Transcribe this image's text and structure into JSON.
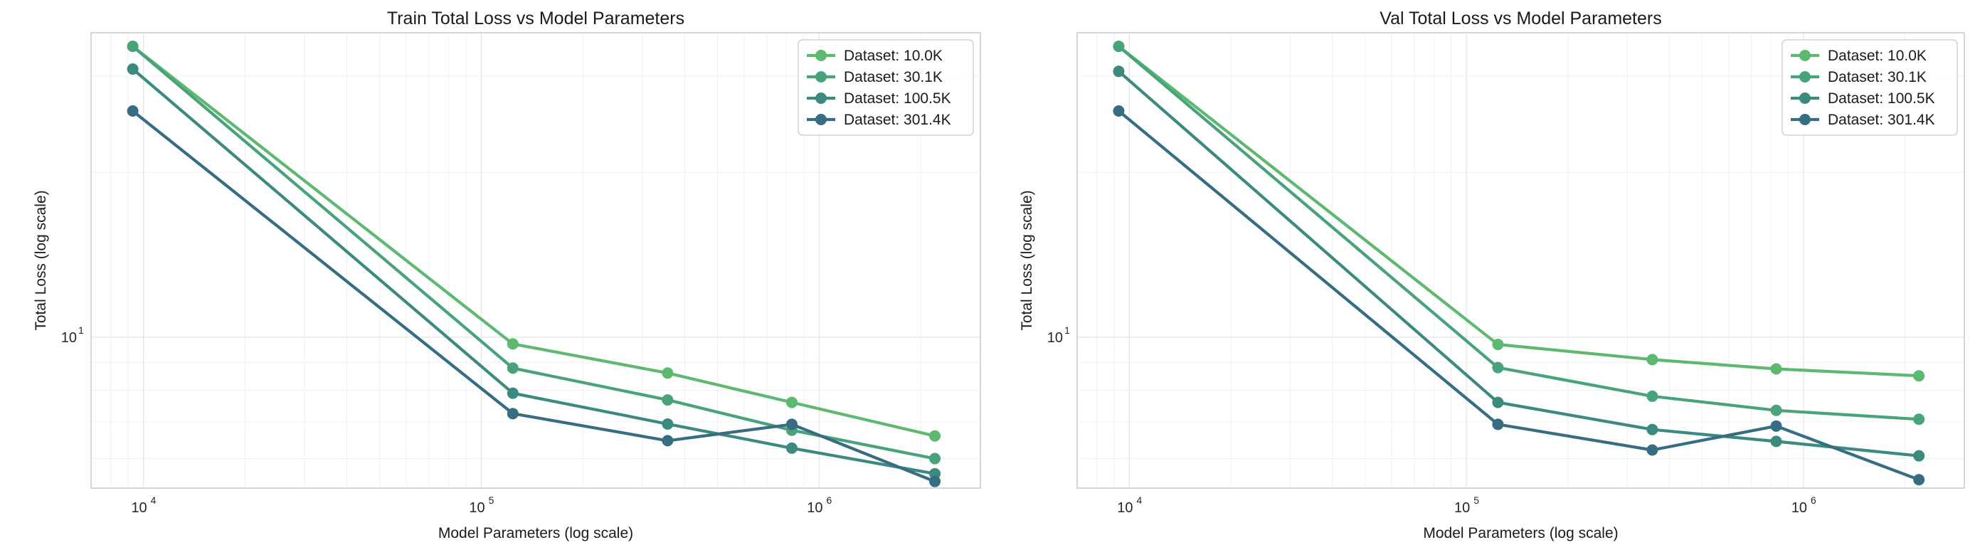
{
  "chart_data": [
    {
      "type": "line",
      "title": "Train Total Loss vs Model Parameters",
      "xlabel": "Model Parameters (log scale)",
      "ylabel": "Total Loss (log scale)",
      "xscale": "log",
      "yscale": "log",
      "xlim": [
        7000,
        3000000
      ],
      "ylim": [
        5.3,
        36
      ],
      "x_ticks": [
        {
          "base": "10",
          "exp": "4",
          "value": 10000
        },
        {
          "base": "10",
          "exp": "5",
          "value": 100000
        },
        {
          "base": "10",
          "exp": "6",
          "value": 1000000
        }
      ],
      "y_ticks": [
        {
          "base": "10",
          "exp": "1",
          "value": 10
        }
      ],
      "grid": true,
      "legend_position": "top-right",
      "x": [
        9300,
        124000,
        356000,
        830000,
        2200000
      ],
      "series": [
        {
          "name": "Dataset: 10.0K",
          "color": "#5db870",
          "values": [
            34.0,
            9.72,
            8.6,
            7.6,
            6.6
          ]
        },
        {
          "name": "Dataset: 30.1K",
          "color": "#48a27a",
          "values": [
            34.0,
            8.78,
            7.68,
            6.76,
            6.0
          ]
        },
        {
          "name": "Dataset: 100.5K",
          "color": "#3a8a80",
          "values": [
            30.9,
            7.9,
            6.94,
            6.27,
            5.63
          ]
        },
        {
          "name": "Dataset: 301.4K",
          "color": "#366d82",
          "values": [
            25.9,
            7.25,
            6.47,
            6.93,
            5.45
          ]
        }
      ]
    },
    {
      "type": "line",
      "title": "Val Total Loss vs Model Parameters",
      "xlabel": "Model Parameters (log scale)",
      "ylabel": "Total Loss (log scale)",
      "xscale": "log",
      "yscale": "log",
      "xlim": [
        7000,
        3000000
      ],
      "ylim": [
        5.3,
        36
      ],
      "x_ticks": [
        {
          "base": "10",
          "exp": "4",
          "value": 10000
        },
        {
          "base": "10",
          "exp": "5",
          "value": 100000
        },
        {
          "base": "10",
          "exp": "6",
          "value": 1000000
        }
      ],
      "y_ticks": [
        {
          "base": "10",
          "exp": "1",
          "value": 10
        }
      ],
      "grid": true,
      "legend_position": "top-right",
      "x": [
        9300,
        124000,
        356000,
        830000,
        2200000
      ],
      "series": [
        {
          "name": "Dataset: 10.0K",
          "color": "#5db870",
          "values": [
            34.0,
            9.7,
            9.1,
            8.75,
            8.5
          ]
        },
        {
          "name": "Dataset: 30.1K",
          "color": "#48a27a",
          "values": [
            34.0,
            8.8,
            7.8,
            7.35,
            7.08
          ]
        },
        {
          "name": "Dataset: 100.5K",
          "color": "#3a8a80",
          "values": [
            30.6,
            7.6,
            6.78,
            6.45,
            6.07
          ]
        },
        {
          "name": "Dataset: 301.4K",
          "color": "#366d82",
          "values": [
            25.9,
            6.93,
            6.22,
            6.88,
            5.49
          ]
        }
      ]
    }
  ]
}
